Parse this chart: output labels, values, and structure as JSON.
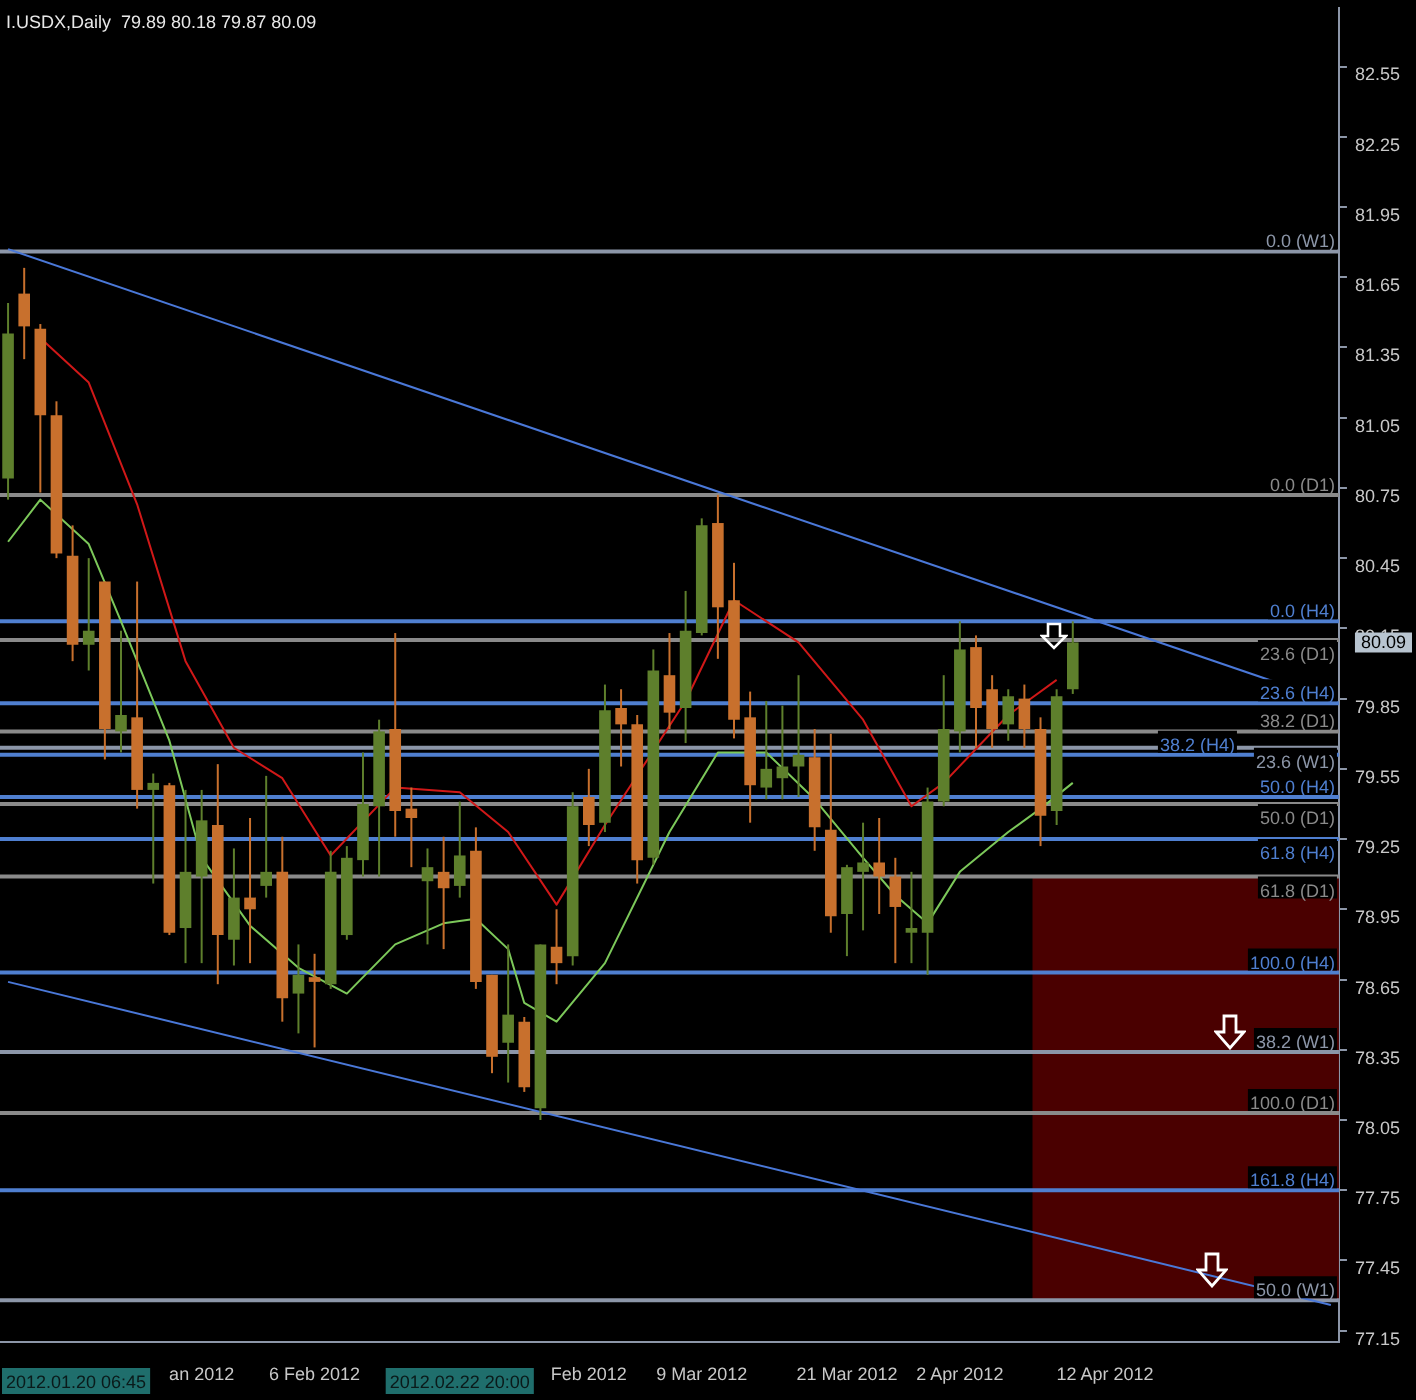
{
  "chart_data": {
    "type": "candlestick",
    "title": "I.USDX,Daily  79.89 80.18 79.87 80.09",
    "categories": [
      null,
      null,
      null,
      null,
      null,
      null,
      null,
      null,
      null,
      null,
      null,
      null,
      "an 2012",
      null,
      null,
      null,
      null,
      null,
      null,
      "6 Feb 2012",
      null,
      null,
      null,
      null,
      null,
      null,
      null,
      null,
      null,
      null,
      null,
      null,
      null,
      null,
      null,
      null,
      "Feb 2012",
      null,
      null,
      null,
      null,
      null,
      null,
      "9 Mar 2012",
      null,
      null,
      null,
      null,
      null,
      null,
      null,
      null,
      "21 Mar 2012",
      null,
      null,
      null,
      null,
      null,
      null,
      "2 Apr 2012",
      null,
      null,
      null,
      null,
      null,
      null,
      null,
      null,
      "12 Apr 2012",
      null,
      null,
      null,
      null,
      null,
      null,
      null,
      null,
      null,
      null,
      null,
      null,
      null,
      null
    ],
    "ohlc": [
      [
        80.79,
        81.54,
        80.7,
        81.41
      ],
      [
        81.58,
        81.69,
        81.3,
        81.44
      ],
      [
        81.43,
        81.45,
        80.73,
        81.06
      ],
      [
        81.06,
        81.12,
        80.45,
        80.47
      ],
      [
        80.46,
        80.59,
        80.01,
        80.08
      ],
      [
        80.08,
        80.45,
        79.97,
        80.14
      ],
      [
        80.35,
        80.35,
        79.59,
        79.72
      ],
      [
        79.71,
        80.14,
        79.62,
        79.78
      ],
      [
        79.77,
        80.35,
        79.38,
        79.46
      ],
      [
        79.46,
        79.53,
        79.06,
        79.49
      ],
      [
        79.48,
        79.49,
        78.84,
        78.85
      ],
      [
        78.87,
        79.46,
        78.72,
        79.11
      ],
      [
        79.09,
        79.46,
        78.72,
        79.33
      ],
      [
        79.31,
        79.57,
        78.63,
        78.84
      ],
      [
        78.82,
        79.21,
        78.71,
        79.0
      ],
      [
        79.0,
        79.34,
        78.72,
        78.95
      ],
      [
        79.05,
        79.52,
        79.0,
        79.11
      ],
      [
        79.11,
        79.26,
        78.47,
        78.57
      ],
      [
        78.59,
        78.8,
        78.42,
        78.67
      ],
      [
        78.66,
        78.76,
        78.36,
        78.64
      ],
      [
        78.63,
        79.2,
        78.61,
        79.11
      ],
      [
        78.84,
        79.22,
        78.82,
        79.17
      ],
      [
        79.16,
        79.62,
        79.09,
        79.4
      ],
      [
        79.39,
        79.76,
        79.09,
        79.71
      ],
      [
        79.72,
        80.13,
        79.26,
        79.37
      ],
      [
        79.38,
        79.47,
        79.13,
        79.34
      ],
      [
        79.07,
        79.21,
        78.8,
        79.13
      ],
      [
        79.11,
        79.26,
        78.78,
        79.04
      ],
      [
        79.05,
        79.41,
        79.0,
        79.18
      ],
      [
        79.2,
        79.3,
        78.61,
        78.64
      ],
      [
        78.67,
        78.67,
        78.25,
        78.32
      ],
      [
        78.38,
        78.8,
        78.21,
        78.5
      ],
      [
        78.47,
        78.49,
        78.17,
        78.19
      ],
      [
        78.1,
        78.8,
        78.05,
        78.8
      ],
      [
        78.79,
        78.95,
        78.63,
        78.72
      ],
      [
        78.75,
        79.45,
        78.71,
        79.39
      ],
      [
        79.43,
        79.55,
        79.22,
        79.31
      ],
      [
        79.32,
        79.91,
        79.28,
        79.8
      ],
      [
        79.81,
        79.89,
        79.56,
        79.74
      ],
      [
        79.74,
        79.78,
        79.06,
        79.16
      ],
      [
        79.17,
        80.06,
        79.14,
        79.97
      ],
      [
        79.95,
        80.13,
        79.72,
        79.79
      ],
      [
        79.81,
        80.31,
        79.66,
        80.14
      ],
      [
        80.13,
        80.62,
        80.12,
        80.59
      ],
      [
        80.6,
        80.72,
        80.02,
        80.24
      ],
      [
        80.27,
        80.43,
        79.68,
        79.76
      ],
      [
        79.77,
        79.88,
        79.32,
        79.48
      ],
      [
        79.47,
        79.84,
        79.42,
        79.55
      ],
      [
        79.51,
        79.82,
        79.42,
        79.56
      ],
      [
        79.56,
        79.95,
        79.43,
        79.61
      ],
      [
        79.6,
        79.72,
        79.2,
        79.3
      ],
      [
        79.29,
        79.7,
        78.85,
        78.92
      ],
      [
        78.93,
        79.14,
        78.75,
        79.13
      ],
      [
        79.11,
        79.32,
        78.86,
        79.15
      ],
      [
        79.15,
        79.34,
        78.93,
        79.09
      ],
      [
        79.09,
        79.17,
        78.72,
        78.96
      ],
      [
        78.85,
        79.11,
        78.72,
        78.87
      ],
      [
        78.85,
        79.47,
        78.67,
        79.41
      ],
      [
        79.41,
        79.95,
        79.39,
        79.72
      ],
      [
        79.71,
        80.18,
        79.62,
        80.06
      ],
      [
        80.07,
        80.12,
        79.64,
        79.81
      ],
      [
        79.89,
        79.95,
        79.64,
        79.72
      ],
      [
        79.74,
        79.89,
        79.67,
        79.86
      ],
      [
        79.85,
        79.91,
        79.64,
        79.72
      ],
      [
        79.72,
        79.77,
        79.22,
        79.35
      ],
      [
        79.37,
        79.89,
        79.31,
        79.86
      ],
      [
        79.89,
        80.18,
        79.87,
        80.09
      ],
      null,
      null,
      null,
      null,
      null,
      null,
      null,
      null,
      null,
      null,
      null,
      null,
      null,
      null,
      null,
      null
    ],
    "series": [
      {
        "type": "line",
        "color": "#d01818",
        "values": [
          null,
          null,
          81.39,
          null,
          null,
          81.2,
          null,
          null,
          80.68,
          null,
          null,
          80.01,
          null,
          null,
          79.64,
          null,
          null,
          79.51,
          null,
          null,
          79.18,
          null,
          null,
          null,
          79.47,
          null,
          null,
          null,
          79.45,
          null,
          null,
          79.28,
          null,
          null,
          78.97,
          null,
          null,
          79.31,
          null,
          null,
          null,
          null,
          79.84,
          null,
          null,
          80.27,
          null,
          null,
          null,
          80.09,
          null,
          null,
          null,
          79.76,
          null,
          null,
          79.39,
          null,
          79.49,
          null,
          null,
          null,
          79.78,
          null,
          null,
          79.93,
          null,
          null,
          null,
          null,
          null,
          null,
          null,
          null,
          null,
          null,
          null,
          null,
          null,
          null,
          null,
          null,
          null
        ]
      },
      {
        "type": "line",
        "color": "#7cc85a",
        "values": [
          80.52,
          null,
          80.7,
          null,
          null,
          80.51,
          null,
          80.18,
          null,
          null,
          79.67,
          null,
          79.17,
          null,
          null,
          78.88,
          null,
          null,
          78.7,
          null,
          null,
          78.59,
          null,
          null,
          78.8,
          null,
          null,
          78.89,
          null,
          78.91,
          null,
          78.78,
          78.55,
          null,
          78.47,
          null,
          null,
          78.72,
          null,
          null,
          null,
          79.28,
          null,
          null,
          79.62,
          null,
          null,
          79.62,
          null,
          null,
          79.42,
          null,
          null,
          79.17,
          null,
          79.01,
          null,
          78.89,
          null,
          79.11,
          null,
          null,
          79.28,
          null,
          79.38,
          null,
          79.49,
          null,
          null,
          null,
          null,
          null,
          null,
          null,
          null,
          null,
          null,
          null,
          null,
          null,
          null,
          null,
          null
        ]
      },
      {
        "type": "line",
        "color": "#4a78d8",
        "values": [
          81.77,
          null,
          null,
          null,
          null,
          null,
          null,
          null,
          null,
          null,
          null,
          null,
          null,
          null,
          null,
          null,
          null,
          null,
          null,
          null,
          null,
          null,
          null,
          null,
          null,
          null,
          null,
          null,
          null,
          null,
          null,
          null,
          null,
          null,
          null,
          null,
          null,
          null,
          null,
          null,
          null,
          null,
          null,
          null,
          null,
          null,
          null,
          null,
          null,
          null,
          null,
          null,
          null,
          null,
          null,
          null,
          null,
          null,
          null,
          null,
          null,
          null,
          null,
          null,
          null,
          null,
          null,
          null,
          null,
          null,
          null,
          null,
          null,
          null,
          null,
          null,
          null,
          null,
          null,
          null,
          null,
          null,
          79.84
        ]
      },
      {
        "type": "line",
        "color": "#4a78d8",
        "values": [
          78.64,
          null,
          null,
          null,
          null,
          null,
          null,
          null,
          null,
          null,
          null,
          null,
          null,
          null,
          null,
          null,
          null,
          null,
          null,
          null,
          null,
          null,
          null,
          null,
          null,
          null,
          null,
          null,
          null,
          null,
          null,
          null,
          null,
          null,
          null,
          null,
          null,
          null,
          null,
          null,
          null,
          null,
          null,
          null,
          null,
          null,
          null,
          null,
          null,
          null,
          null,
          null,
          null,
          null,
          null,
          null,
          null,
          null,
          null,
          null,
          null,
          null,
          null,
          null,
          null,
          null,
          null,
          null,
          null,
          null,
          null,
          null,
          null,
          null,
          null,
          null,
          null,
          null,
          null,
          null,
          null,
          null,
          77.26
        ]
      }
    ],
    "marker": "none",
    "line_style": "solid",
    "ylim": [
      77.1,
      82.8
    ],
    "yticks": [
      77.15,
      77.45,
      77.75,
      78.05,
      78.35,
      78.65,
      78.95,
      79.25,
      79.55,
      79.85,
      80.15,
      80.45,
      80.75,
      81.05,
      81.35,
      81.65,
      81.95,
      82.25,
      82.55
    ],
    "bands": [
      {
        "axis": "y",
        "from": 77.28,
        "to": 79.09,
        "color": "#4a0000"
      }
    ],
    "ref_lines": [
      {
        "axis": "y",
        "value": 81.76,
        "label": "0.0 (W1)",
        "color": "#8c96a8"
      },
      {
        "axis": "y",
        "value": 80.72,
        "label": "0.0 (D1)",
        "color": "#8a8a8a"
      },
      {
        "axis": "y",
        "value": 80.18,
        "label": "0.0 (H4)",
        "color": "#4f7fd0"
      },
      {
        "axis": "y",
        "value": 80.1,
        "label": "23.6 (D1)",
        "color": "#8a8a8a"
      },
      {
        "axis": "y",
        "value": 79.83,
        "label": "23.6 (H4)",
        "color": "#4f7fd0"
      },
      {
        "axis": "y",
        "value": 79.71,
        "label": "38.2 (D1)",
        "color": "#8a8a8a"
      },
      {
        "axis": "y",
        "value": 79.64,
        "label": "23.6 (W1)",
        "color": "#8c96a8"
      },
      {
        "axis": "y",
        "value": 79.61,
        "label": "38.2 (H4)",
        "color": "#4f7fd0"
      },
      {
        "axis": "y",
        "value": 79.43,
        "label": "50.0 (H4)",
        "color": "#4f7fd0"
      },
      {
        "axis": "y",
        "value": 79.4,
        "label": "50.0 (D1)",
        "color": "#8a8a8a"
      },
      {
        "axis": "y",
        "value": 79.25,
        "label": "61.8 (H4)",
        "color": "#4f7fd0"
      },
      {
        "axis": "y",
        "value": 79.09,
        "label": "61.8 (D1)",
        "color": "#8a8a8a"
      },
      {
        "axis": "y",
        "value": 78.68,
        "label": "100.0 (H4)",
        "color": "#4f7fd0"
      },
      {
        "axis": "y",
        "value": 78.34,
        "label": "38.2 (W1)",
        "color": "#8c96a8"
      },
      {
        "axis": "y",
        "value": 78.08,
        "label": "100.0 (D1)",
        "color": "#8a8a8a"
      },
      {
        "axis": "y",
        "value": 77.75,
        "label": "161.8 (H4)",
        "color": "#4f7fd0"
      },
      {
        "axis": "y",
        "value": 77.28,
        "label": "50.0 (W1)",
        "color": "#8c96a8"
      }
    ],
    "annotations": [
      "2012.01.20 06:45",
      "2012.02.22 20:00",
      "80.09"
    ]
  }
}
